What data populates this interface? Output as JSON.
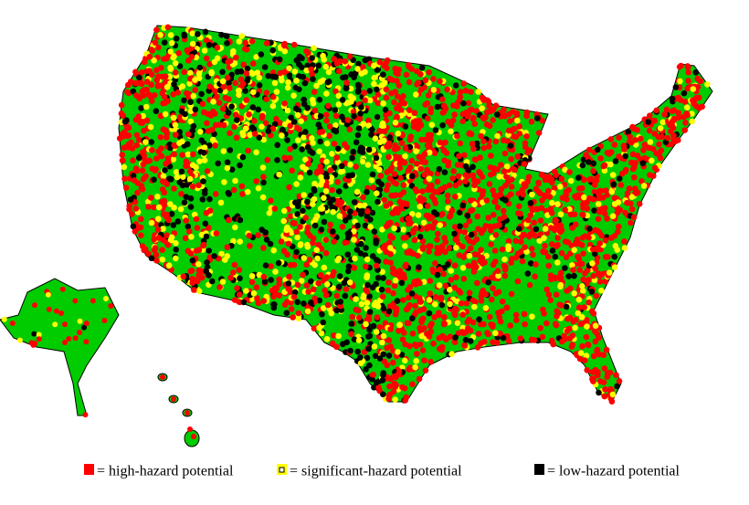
{
  "legend": {
    "items": [
      {
        "label": "= high-hazard potential",
        "color": "#ff0000"
      },
      {
        "label": "= significant-hazard potential",
        "color": "#ffff00"
      },
      {
        "label": "= low-hazard potential",
        "color": "#000000"
      }
    ]
  }
}
